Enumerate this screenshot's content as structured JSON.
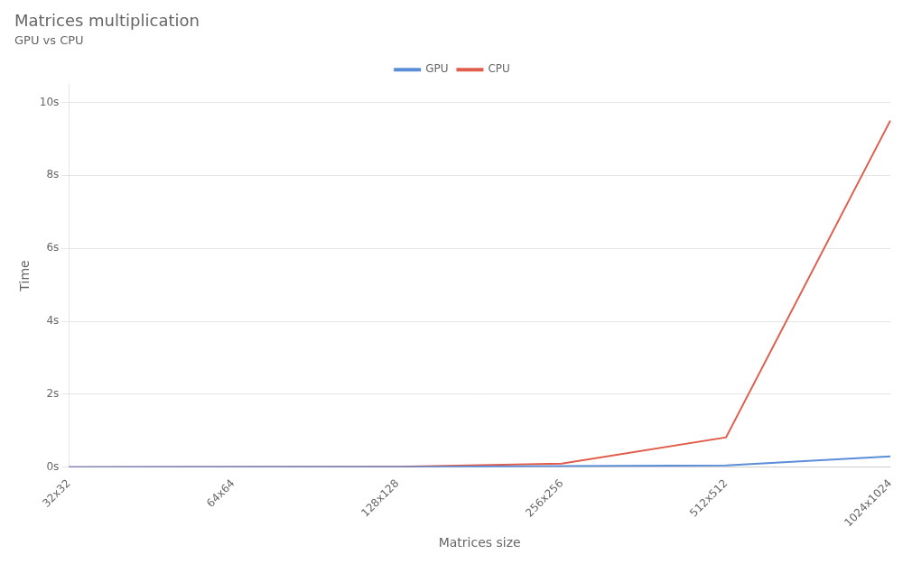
{
  "chart_data": {
    "type": "line",
    "title": "Matrices multiplication",
    "subtitle": "GPU vs CPU",
    "xlabel": "Matrices size",
    "ylabel": "Time",
    "categories": [
      "32x32",
      "64x64",
      "128x128",
      "256x256",
      "512x512",
      "1024x1024"
    ],
    "series": [
      {
        "name": "GPU",
        "color": "#5b8dd9",
        "values": [
          0.003,
          0.005,
          0.01,
          0.03,
          0.05,
          0.3
        ]
      },
      {
        "name": "CPU",
        "color": "#e05c4b",
        "values": [
          0.003,
          0.006,
          0.015,
          0.1,
          0.82,
          9.5
        ]
      }
    ],
    "ylim": [
      0,
      10.5
    ],
    "yticks": [
      {
        "value": 0,
        "label": "0s"
      },
      {
        "value": 2,
        "label": "2s"
      },
      {
        "value": 4,
        "label": "4s"
      },
      {
        "value": 6,
        "label": "6s"
      },
      {
        "value": 8,
        "label": "8s"
      },
      {
        "value": 10,
        "label": "10s"
      }
    ],
    "grid": true,
    "legend": "top"
  }
}
